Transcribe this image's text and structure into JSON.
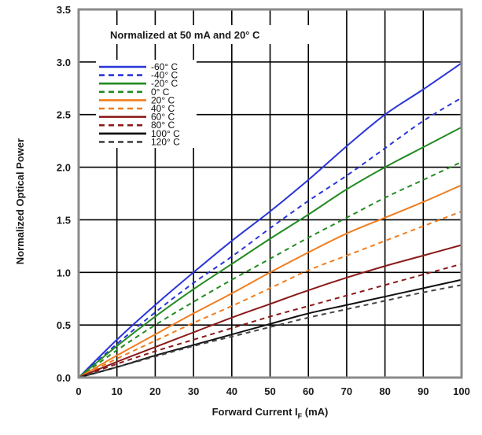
{
  "chart_data": {
    "type": "line",
    "annotation": "Normalized at 50 mA and 20° C",
    "xlabel": "Forward Current I",
    "xlabel_sub": "F",
    "xlabel_unit": " (mA)",
    "ylabel": "Normalized Optical Power",
    "xlim": [
      0,
      100
    ],
    "ylim": [
      0,
      3.5
    ],
    "grid": true,
    "legend_position": "top-left",
    "xticks": [
      0,
      10,
      20,
      30,
      40,
      50,
      60,
      70,
      80,
      90,
      100
    ],
    "yticks": [
      "0.0",
      "0.5",
      "1.0",
      "1.5",
      "2.0",
      "2.5",
      "3.0",
      "3.5"
    ],
    "x": [
      0,
      10,
      20,
      30,
      40,
      50,
      60,
      70,
      80,
      90,
      100
    ],
    "series": [
      {
        "name": "-60° C",
        "color": "#2a35d8",
        "dash": "solid",
        "values": [
          0,
          0.36,
          0.69,
          1.0,
          1.3,
          1.58,
          1.88,
          2.2,
          2.5,
          2.74,
          2.99
        ]
      },
      {
        "name": "-40° C",
        "color": "#2a35d8",
        "dash": "dashed",
        "values": [
          0,
          0.32,
          0.62,
          0.9,
          1.15,
          1.42,
          1.68,
          1.92,
          2.18,
          2.44,
          2.66
        ]
      },
      {
        "name": "-20° C",
        "color": "#228b22",
        "dash": "solid",
        "values": [
          0,
          0.3,
          0.58,
          0.84,
          1.08,
          1.32,
          1.55,
          1.79,
          2.0,
          2.19,
          2.38
        ]
      },
      {
        "name": "0° C",
        "color": "#228b22",
        "dash": "dashed",
        "values": [
          0,
          0.26,
          0.5,
          0.72,
          0.93,
          1.13,
          1.33,
          1.52,
          1.71,
          1.88,
          2.05
        ]
      },
      {
        "name": "20° C",
        "color": "#f07d1f",
        "dash": "solid",
        "values": [
          0,
          0.21,
          0.41,
          0.61,
          0.8,
          1.0,
          1.19,
          1.37,
          1.52,
          1.67,
          1.83
        ]
      },
      {
        "name": "40° C",
        "color": "#f07d1f",
        "dash": "dashed",
        "values": [
          0,
          0.18,
          0.35,
          0.52,
          0.68,
          0.85,
          1.02,
          1.16,
          1.3,
          1.44,
          1.58
        ]
      },
      {
        "name": "60° C",
        "color": "#8b1a1a",
        "dash": "solid",
        "values": [
          0,
          0.15,
          0.29,
          0.43,
          0.57,
          0.7,
          0.83,
          0.95,
          1.06,
          1.16,
          1.26
        ]
      },
      {
        "name": "80° C",
        "color": "#8b1a1a",
        "dash": "dashed",
        "values": [
          0,
          0.13,
          0.25,
          0.36,
          0.47,
          0.58,
          0.68,
          0.78,
          0.88,
          0.98,
          1.08
        ]
      },
      {
        "name": "100° C",
        "color": "#111111",
        "dash": "solid",
        "values": [
          0,
          0.1,
          0.21,
          0.31,
          0.41,
          0.51,
          0.61,
          0.69,
          0.77,
          0.85,
          0.93
        ]
      },
      {
        "name": "120° C",
        "color": "#444444",
        "dash": "dashed",
        "values": [
          0,
          0.1,
          0.2,
          0.3,
          0.39,
          0.48,
          0.57,
          0.65,
          0.73,
          0.81,
          0.88
        ]
      }
    ]
  }
}
